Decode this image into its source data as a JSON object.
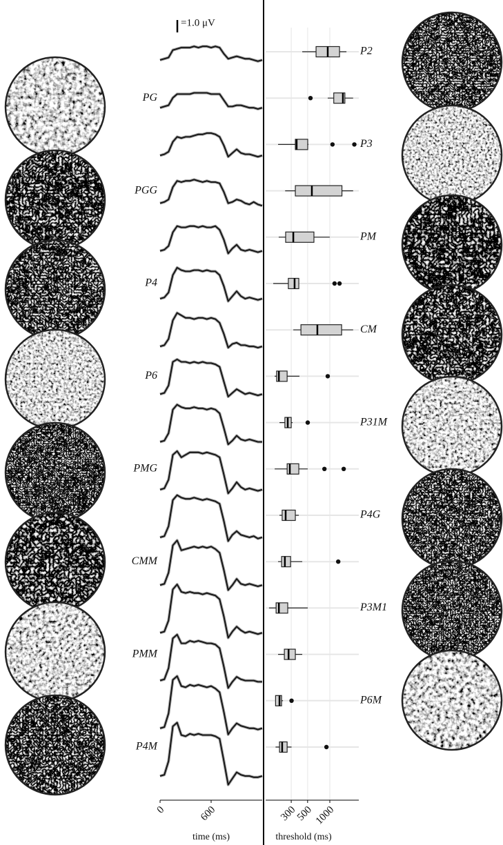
{
  "chart_data": [
    {
      "type": "line",
      "xlabel": "time (ms)",
      "x": [
        0,
        50,
        100,
        150,
        200,
        250,
        300,
        350,
        400,
        450,
        500,
        550,
        600,
        650,
        700,
        750,
        800,
        850,
        900,
        950,
        1000,
        1050,
        1100,
        1150,
        1200
      ],
      "xlim": [
        0,
        1200
      ],
      "xticks": [
        0,
        600
      ],
      "color": "#111111",
      "scale_bar": {
        "value": 1,
        "label": "=1.0 μV"
      },
      "series": [
        {
          "values": [
            0,
            0.1,
            0.2,
            0.8,
            0.9,
            1.0,
            1.0,
            1.0,
            1.1,
            1.0,
            1.1,
            1.1,
            1.0,
            1.1,
            1.0,
            0.5,
            0.1,
            0.2,
            0.3,
            0.2,
            0.1,
            0.1,
            0,
            -0.1,
            0
          ]
        },
        {
          "values": [
            0,
            0.1,
            0.2,
            0.8,
            1.1,
            1.1,
            1.1,
            1.1,
            1.2,
            1.2,
            1.2,
            1.2,
            1.1,
            1.1,
            1.1,
            0.6,
            0.1,
            0.1,
            0.2,
            0.2,
            0.1,
            0,
            0,
            -0.1,
            0
          ]
        },
        {
          "values": [
            0,
            0.1,
            0.3,
            1.1,
            1.5,
            1.4,
            1.5,
            1.5,
            1.6,
            1.7,
            1.7,
            1.8,
            1.8,
            1.7,
            1.5,
            0.8,
            -0.1,
            0.2,
            0.5,
            0.2,
            0.1,
            0.1,
            0,
            -0.1,
            0
          ]
        },
        {
          "values": [
            0,
            0.1,
            0.3,
            1.3,
            1.8,
            1.7,
            1.8,
            1.8,
            1.9,
            1.8,
            1.7,
            1.8,
            1.7,
            1.7,
            1.6,
            0.9,
            0,
            0.1,
            0.3,
            0.2,
            0,
            -0.1,
            0.1,
            -0.1,
            -0.2
          ]
        },
        {
          "values": [
            0,
            0.1,
            0.4,
            1.5,
            2.0,
            1.9,
            1.9,
            2.0,
            2.0,
            1.9,
            2.0,
            1.9,
            1.9,
            2.0,
            1.7,
            0.9,
            -0.2,
            0.2,
            0.5,
            0.1,
            0,
            0.1,
            0,
            -0.1,
            0
          ]
        },
        {
          "values": [
            0,
            0.1,
            0.5,
            1.9,
            2.5,
            2.3,
            2.2,
            2.2,
            2.3,
            2.3,
            2.2,
            2.3,
            2.2,
            2.2,
            1.9,
            1.0,
            -0.2,
            0.2,
            0.6,
            0.2,
            0,
            0.1,
            0,
            -0.1,
            0
          ]
        },
        {
          "values": [
            0,
            0.1,
            0.6,
            2.1,
            2.7,
            2.5,
            2.3,
            2.3,
            2.2,
            2.3,
            2.3,
            2.2,
            2.3,
            2.2,
            1.9,
            1.0,
            -0.1,
            0.2,
            0.3,
            0.1,
            0.1,
            0,
            0,
            -0.1,
            0
          ]
        },
        {
          "values": [
            0,
            0.1,
            0.7,
            2.6,
            2.8,
            2.6,
            2.6,
            2.5,
            2.6,
            2.5,
            2.6,
            2.5,
            2.5,
            2.4,
            2.2,
            1.0,
            -0.2,
            0.1,
            0.4,
            0.2,
            0,
            0.1,
            0,
            -0.1,
            0
          ]
        },
        {
          "values": [
            0,
            0.1,
            0.7,
            2.6,
            3.0,
            2.8,
            2.7,
            2.7,
            2.8,
            2.7,
            2.7,
            2.6,
            2.7,
            2.6,
            2.3,
            1.1,
            -0.2,
            0.1,
            0.5,
            0.2,
            0.1,
            0.2,
            0.1,
            0,
            0
          ]
        },
        {
          "values": [
            0,
            0.1,
            0.8,
            2.8,
            3.1,
            2.6,
            2.8,
            3.0,
            3.0,
            3.0,
            2.9,
            3.0,
            2.9,
            2.8,
            2.6,
            1.2,
            -0.3,
            0.1,
            0.6,
            0.2,
            0,
            0.1,
            0,
            -0.1,
            0
          ]
        },
        {
          "values": [
            0,
            0.1,
            0.9,
            3.0,
            3.4,
            3.2,
            3.1,
            3.1,
            3.2,
            3.1,
            3.0,
            3.1,
            3.0,
            2.9,
            2.7,
            1.3,
            -0.3,
            0.2,
            0.5,
            0.2,
            0.1,
            0,
            0.1,
            -0.1,
            0
          ]
        },
        {
          "values": [
            0,
            0.1,
            1.0,
            3.2,
            3.6,
            2.8,
            2.9,
            3.0,
            3.1,
            3.0,
            3.1,
            3.0,
            3.1,
            2.9,
            2.6,
            1.2,
            -0.4,
            0,
            0.5,
            0.1,
            0,
            0.1,
            0,
            -0.1,
            0
          ]
        },
        {
          "values": [
            0,
            0.1,
            1.0,
            3.5,
            3.9,
            3.3,
            3.2,
            3.3,
            3.2,
            3.2,
            3.1,
            3.2,
            3.1,
            3.0,
            2.7,
            1.3,
            -0.4,
            0.1,
            0.5,
            0.2,
            0,
            0.1,
            0,
            -0.1,
            0
          ]
        },
        {
          "values": [
            0,
            0.1,
            1.0,
            3.4,
            3.7,
            3.0,
            3.0,
            3.2,
            3.1,
            3.2,
            3.1,
            3.0,
            3.0,
            2.9,
            2.6,
            1.1,
            -0.6,
            -0.1,
            0.3,
            0.1,
            0,
            0,
            0,
            -0.1,
            -0.1
          ]
        },
        {
          "values": [
            0,
            0.1,
            1.2,
            3.9,
            4.2,
            3.4,
            3.3,
            3.5,
            3.4,
            3.5,
            3.4,
            3.3,
            3.4,
            3.2,
            2.9,
            1.3,
            -0.5,
            0,
            0.4,
            0.2,
            0.1,
            0,
            0,
            -0.1,
            0
          ]
        },
        {
          "values": [
            0,
            0.1,
            1.2,
            4.0,
            4.3,
            3.3,
            3.2,
            3.4,
            3.3,
            3.4,
            3.3,
            3.3,
            3.3,
            3.2,
            3.0,
            1.2,
            -0.7,
            -0.2,
            0.3,
            0.1,
            0,
            0,
            -0.1,
            -0.1,
            0
          ]
        }
      ]
    },
    {
      "type": "box",
      "xlabel": "threshold (ms)",
      "log_x": true,
      "grid": true,
      "xlim": [
        135,
        2470
      ],
      "xticks": [
        300,
        500,
        1000
      ],
      "color": "#d3d3d3",
      "categories": [
        "P2",
        "PG",
        "P3",
        "PGG",
        "PM",
        "P4",
        "CM",
        "P6",
        "P31M",
        "PMG",
        "P4G",
        "CMM",
        "P3M1",
        "PMM",
        "P6M",
        "P4M"
      ],
      "boxes": [
        {
          "min": 423,
          "q1": 651,
          "median": 937,
          "q3": 1354,
          "max": 1680,
          "outliers": []
        },
        {
          "min": 937,
          "q1": 1131,
          "median": 1505,
          "q3": 1600,
          "max": 2070,
          "outliers": [
            547
          ]
        },
        {
          "min": 199,
          "q1": 341,
          "median": 355,
          "q3": 502,
          "max": 513,
          "outliers": [
            1087,
            2150
          ]
        },
        {
          "min": 248,
          "q1": 341,
          "median": 571,
          "q3": 1460,
          "max": 2070,
          "outliers": []
        },
        {
          "min": 203,
          "q1": 252,
          "median": 320,
          "q3": 609,
          "max": 998,
          "outliers": []
        },
        {
          "min": 171,
          "q1": 274,
          "median": 333,
          "q3": 380,
          "max": 380,
          "outliers": [
            1160,
            1354
          ]
        },
        {
          "min": 320,
          "q1": 406,
          "median": 678,
          "q3": 1445,
          "max": 2070,
          "outliers": []
        },
        {
          "min": 179,
          "q1": 190,
          "median": 204,
          "q3": 264,
          "max": 388,
          "outliers": [
            937
          ]
        },
        {
          "min": 208,
          "q1": 246,
          "median": 269,
          "q3": 300,
          "max": 313,
          "outliers": [
            502
          ]
        },
        {
          "min": 179,
          "q1": 264,
          "median": 287,
          "q3": 380,
          "max": 502,
          "outliers": [
            845,
            1542
          ]
        },
        {
          "min": 208,
          "q1": 226,
          "median": 252,
          "q3": 341,
          "max": 380,
          "outliers": []
        },
        {
          "min": 199,
          "q1": 222,
          "median": 246,
          "q3": 294,
          "max": 423,
          "outliers": [
            1300
          ]
        },
        {
          "min": 150,
          "q1": 187,
          "median": 204,
          "q3": 269,
          "max": 502,
          "outliers": []
        },
        {
          "min": 199,
          "q1": 242,
          "median": 276,
          "q3": 341,
          "max": 423,
          "outliers": []
        },
        {
          "min": 184,
          "q1": 184,
          "median": 208,
          "q3": 222,
          "max": 232,
          "outliers": [
            303
          ]
        },
        {
          "min": 184,
          "q1": 208,
          "median": 226,
          "q3": 264,
          "max": 303,
          "outliers": [
            900
          ]
        }
      ]
    }
  ]
}
